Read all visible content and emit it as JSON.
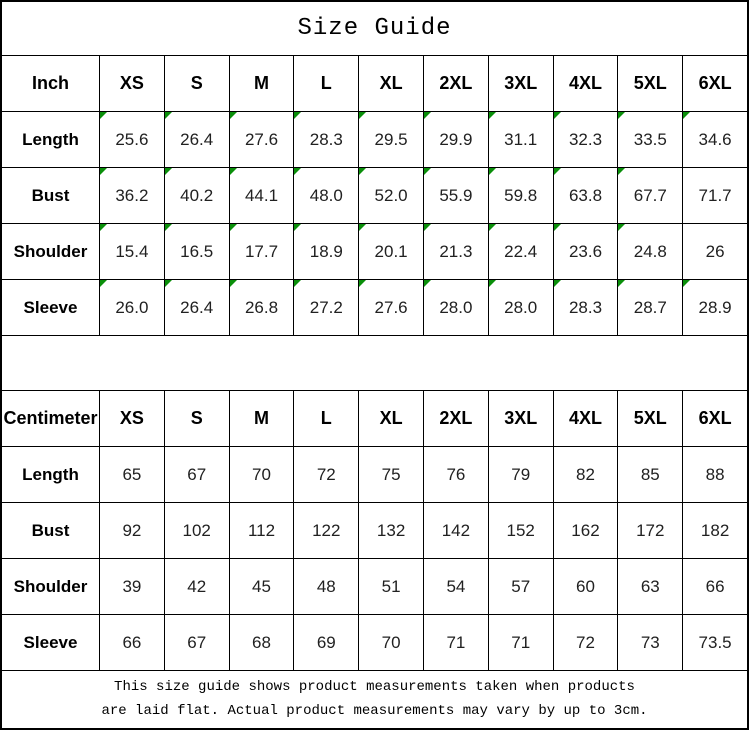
{
  "title": "Size Guide",
  "colors": {
    "grid": "#000000",
    "flag_green": "#0a8f0a",
    "text": "#000000"
  },
  "tables": [
    {
      "unit_label": "Inch",
      "sizes": [
        "XS",
        "S",
        "M",
        "L",
        "XL",
        "2XL",
        "3XL",
        "4XL",
        "5XL",
        "6XL"
      ],
      "rows": [
        {
          "label": "Length",
          "values": [
            "25.6",
            "26.4",
            "27.6",
            "28.3",
            "29.5",
            "29.9",
            "31.1",
            "32.3",
            "33.5",
            "34.6"
          ],
          "flags": [
            true,
            true,
            true,
            true,
            true,
            true,
            true,
            true,
            true,
            true
          ]
        },
        {
          "label": "Bust",
          "values": [
            "36.2",
            "40.2",
            "44.1",
            "48.0",
            "52.0",
            "55.9",
            "59.8",
            "63.8",
            "67.7",
            "71.7"
          ],
          "flags": [
            true,
            true,
            true,
            true,
            true,
            true,
            true,
            true,
            true,
            false
          ]
        },
        {
          "label": "Shoulder",
          "values": [
            "15.4",
            "16.5",
            "17.7",
            "18.9",
            "20.1",
            "21.3",
            "22.4",
            "23.6",
            "24.8",
            "26"
          ],
          "flags": [
            true,
            true,
            true,
            true,
            true,
            true,
            true,
            true,
            true,
            false
          ]
        },
        {
          "label": "Sleeve",
          "values": [
            "26.0",
            "26.4",
            "26.8",
            "27.2",
            "27.6",
            "28.0",
            "28.0",
            "28.3",
            "28.7",
            "28.9"
          ],
          "flags": [
            true,
            true,
            true,
            true,
            true,
            true,
            true,
            true,
            true,
            true
          ]
        }
      ]
    },
    {
      "unit_label": "Centimeter",
      "sizes": [
        "XS",
        "S",
        "M",
        "L",
        "XL",
        "2XL",
        "3XL",
        "4XL",
        "5XL",
        "6XL"
      ],
      "rows": [
        {
          "label": "Length",
          "values": [
            "65",
            "67",
            "70",
            "72",
            "75",
            "76",
            "79",
            "82",
            "85",
            "88"
          ],
          "flags": [
            false,
            false,
            false,
            false,
            false,
            false,
            false,
            false,
            false,
            false
          ]
        },
        {
          "label": "Bust",
          "values": [
            "92",
            "102",
            "112",
            "122",
            "132",
            "142",
            "152",
            "162",
            "172",
            "182"
          ],
          "flags": [
            false,
            false,
            false,
            false,
            false,
            false,
            false,
            false,
            false,
            false
          ]
        },
        {
          "label": "Shoulder",
          "values": [
            "39",
            "42",
            "45",
            "48",
            "51",
            "54",
            "57",
            "60",
            "63",
            "66"
          ],
          "flags": [
            false,
            false,
            false,
            false,
            false,
            false,
            false,
            false,
            false,
            false
          ]
        },
        {
          "label": "Sleeve",
          "values": [
            "66",
            "67",
            "68",
            "69",
            "70",
            "71",
            "71",
            "72",
            "73",
            "73.5"
          ],
          "flags": [
            false,
            false,
            false,
            false,
            false,
            false,
            false,
            false,
            false,
            false
          ]
        }
      ]
    }
  ],
  "footer": {
    "line1": "This size guide shows product measurements taken when products",
    "line2": "are laid flat. Actual product measurements may vary by up to 3cm."
  },
  "chart_data": [
    {
      "type": "table",
      "title": "Size Guide (Inch)",
      "columns": [
        "Inch",
        "XS",
        "S",
        "M",
        "L",
        "XL",
        "2XL",
        "3XL",
        "4XL",
        "5XL",
        "6XL"
      ],
      "rows": [
        [
          "Length",
          "25.6",
          "26.4",
          "27.6",
          "28.3",
          "29.5",
          "29.9",
          "31.1",
          "32.3",
          "33.5",
          "34.6"
        ],
        [
          "Bust",
          "36.2",
          "40.2",
          "44.1",
          "48.0",
          "52.0",
          "55.9",
          "59.8",
          "63.8",
          "67.7",
          "71.7"
        ],
        [
          "Shoulder",
          "15.4",
          "16.5",
          "17.7",
          "18.9",
          "20.1",
          "21.3",
          "22.4",
          "23.6",
          "24.8",
          "26"
        ],
        [
          "Sleeve",
          "26.0",
          "26.4",
          "26.8",
          "27.2",
          "27.6",
          "28.0",
          "28.0",
          "28.3",
          "28.7",
          "28.9"
        ]
      ]
    },
    {
      "type": "table",
      "title": "Size Guide (Centimeter)",
      "columns": [
        "Centimeter",
        "XS",
        "S",
        "M",
        "L",
        "XL",
        "2XL",
        "3XL",
        "4XL",
        "5XL",
        "6XL"
      ],
      "rows": [
        [
          "Length",
          "65",
          "67",
          "70",
          "72",
          "75",
          "76",
          "79",
          "82",
          "85",
          "88"
        ],
        [
          "Bust",
          "92",
          "102",
          "112",
          "122",
          "132",
          "142",
          "152",
          "162",
          "172",
          "182"
        ],
        [
          "Shoulder",
          "39",
          "42",
          "45",
          "48",
          "51",
          "54",
          "57",
          "60",
          "63",
          "66"
        ],
        [
          "Sleeve",
          "66",
          "67",
          "68",
          "69",
          "70",
          "71",
          "71",
          "72",
          "73",
          "73.5"
        ]
      ]
    }
  ]
}
